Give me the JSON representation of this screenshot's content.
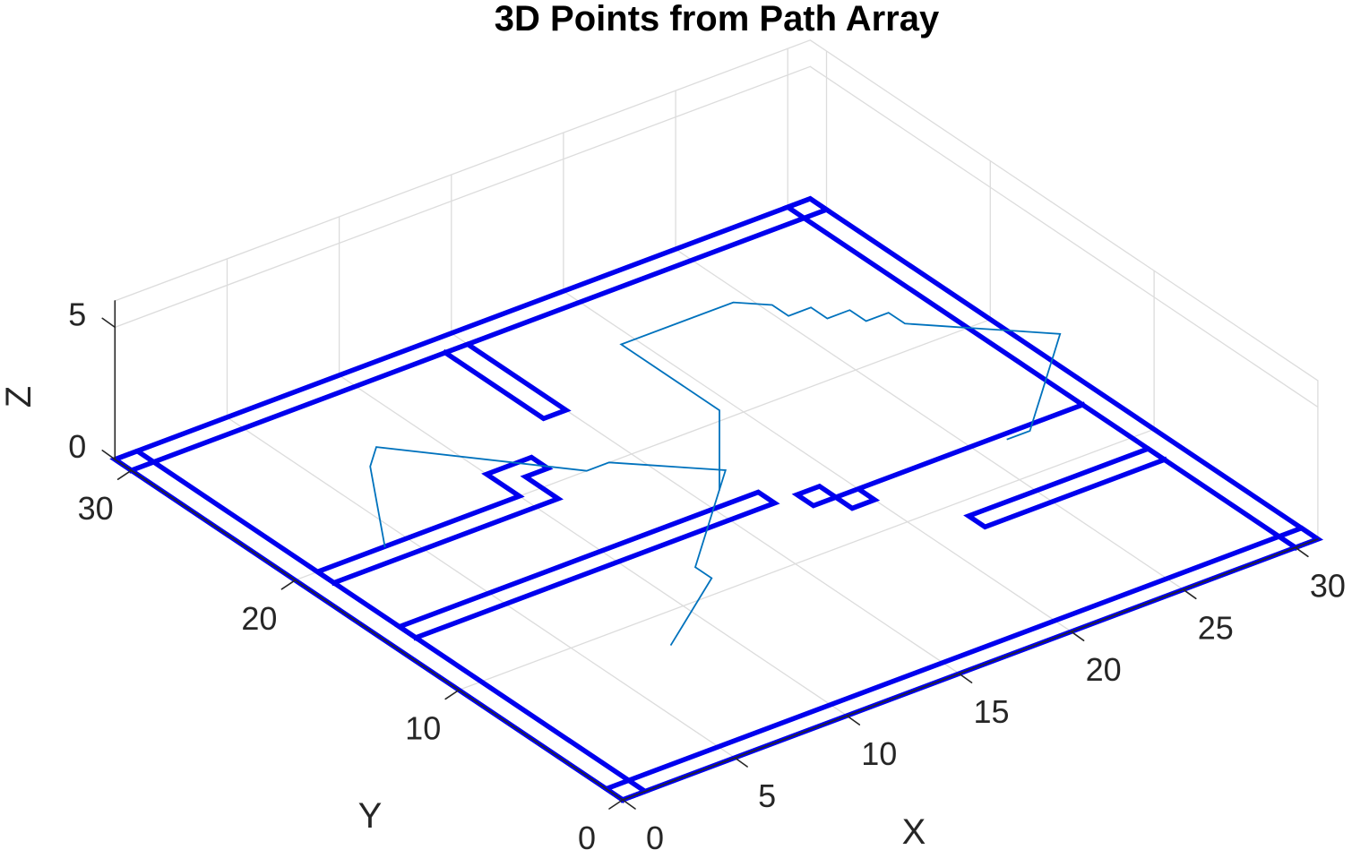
{
  "chart_data": {
    "type": "line",
    "title": "3D Points from Path Array",
    "xlabel": "X",
    "ylabel": "Y",
    "zlabel": "Z",
    "xlim": [
      0,
      31
    ],
    "ylim": [
      0,
      31
    ],
    "zlim": [
      0,
      6
    ],
    "view": "3d",
    "grid": true,
    "x_ticks": [
      "0",
      "5",
      "10",
      "15",
      "20",
      "25",
      "30"
    ],
    "y_ticks": [
      "0",
      "10",
      "20",
      "30"
    ],
    "z_ticks": [
      "0",
      "5"
    ],
    "colors": {
      "walls": "#0000ee",
      "path": "#0072bd",
      "grid": "#dcdcdc",
      "axis": "#262626"
    },
    "walls": [
      {
        "name": "outer-bottom",
        "points": [
          [
            0,
            0
          ],
          [
            31,
            0
          ],
          [
            31,
            1
          ],
          [
            0,
            1
          ],
          [
            0,
            0
          ]
        ]
      },
      {
        "name": "outer-top",
        "points": [
          [
            0,
            30
          ],
          [
            31,
            30
          ],
          [
            31,
            31
          ],
          [
            0,
            31
          ],
          [
            0,
            30
          ]
        ]
      },
      {
        "name": "outer-left",
        "points": [
          [
            0,
            0
          ],
          [
            1,
            0
          ],
          [
            1,
            31
          ],
          [
            0,
            31
          ],
          [
            0,
            0
          ]
        ]
      },
      {
        "name": "outer-right",
        "points": [
          [
            30,
            0
          ],
          [
            31,
            0
          ],
          [
            31,
            31
          ],
          [
            30,
            31
          ],
          [
            30,
            0
          ]
        ]
      },
      {
        "name": "inner-a",
        "points": [
          [
            1,
            14
          ],
          [
            17,
            14
          ],
          [
            17,
            15
          ],
          [
            1,
            15
          ],
          [
            1,
            14
          ]
        ]
      },
      {
        "name": "inner-b",
        "points": [
          [
            1,
            19
          ],
          [
            11,
            19
          ],
          [
            11,
            21
          ],
          [
            12,
            21
          ],
          [
            12,
            22
          ],
          [
            10,
            22
          ],
          [
            10,
            20
          ],
          [
            1,
            20
          ],
          [
            1,
            19
          ]
        ]
      },
      {
        "name": "inner-c",
        "points": [
          [
            14,
            30
          ],
          [
            14,
            24
          ],
          [
            15,
            24
          ],
          [
            15,
            30
          ],
          [
            14,
            30
          ]
        ]
      },
      {
        "name": "inner-d",
        "points": [
          [
            30,
            8
          ],
          [
            22,
            8
          ],
          [
            22,
            9
          ],
          [
            30,
            9
          ],
          [
            30,
            8
          ]
        ]
      },
      {
        "name": "inner-e",
        "points": [
          [
            30,
            13
          ],
          [
            19,
            13
          ],
          [
            19,
            14
          ],
          [
            18,
            14
          ],
          [
            18,
            13
          ],
          [
            19,
            13
          ],
          [
            19,
            12
          ],
          [
            20,
            12
          ],
          [
            20,
            13
          ],
          [
            30,
            13
          ]
        ]
      }
    ],
    "path": [
      [
        8,
        8,
        0
      ],
      [
        12,
        11,
        0
      ],
      [
        12,
        12,
        0
      ],
      [
        16,
        16,
        0
      ],
      [
        16,
        16,
        3
      ],
      [
        16,
        22,
        3
      ],
      [
        20,
        22,
        3
      ],
      [
        21,
        22,
        3
      ],
      [
        22,
        21,
        3
      ],
      [
        22,
        20,
        3
      ],
      [
        23,
        20,
        3
      ],
      [
        23,
        19,
        3
      ],
      [
        24,
        19,
        3
      ],
      [
        24,
        18,
        3
      ],
      [
        25,
        18,
        3
      ],
      [
        25,
        17,
        3
      ],
      [
        26,
        16,
        3
      ],
      [
        27,
        15,
        3
      ],
      [
        28,
        14,
        3
      ],
      [
        29,
        13,
        3
      ],
      [
        28,
        12,
        3
      ],
      [
        27,
        11,
        3
      ],
      [
        26,
        10,
        3
      ],
      [
        25,
        9,
        3
      ],
      [
        24,
        8,
        3
      ],
      [
        23,
        8,
        3
      ]
    ],
    "path2": [
      [
        4,
        20,
        0
      ],
      [
        7,
        25,
        0
      ],
      [
        8,
        26,
        0
      ],
      [
        13,
        20,
        0
      ],
      [
        14,
        20,
        0
      ],
      [
        15,
        19,
        0
      ],
      [
        16,
        18,
        0
      ],
      [
        17,
        17,
        0
      ],
      [
        16,
        16,
        0
      ]
    ]
  }
}
